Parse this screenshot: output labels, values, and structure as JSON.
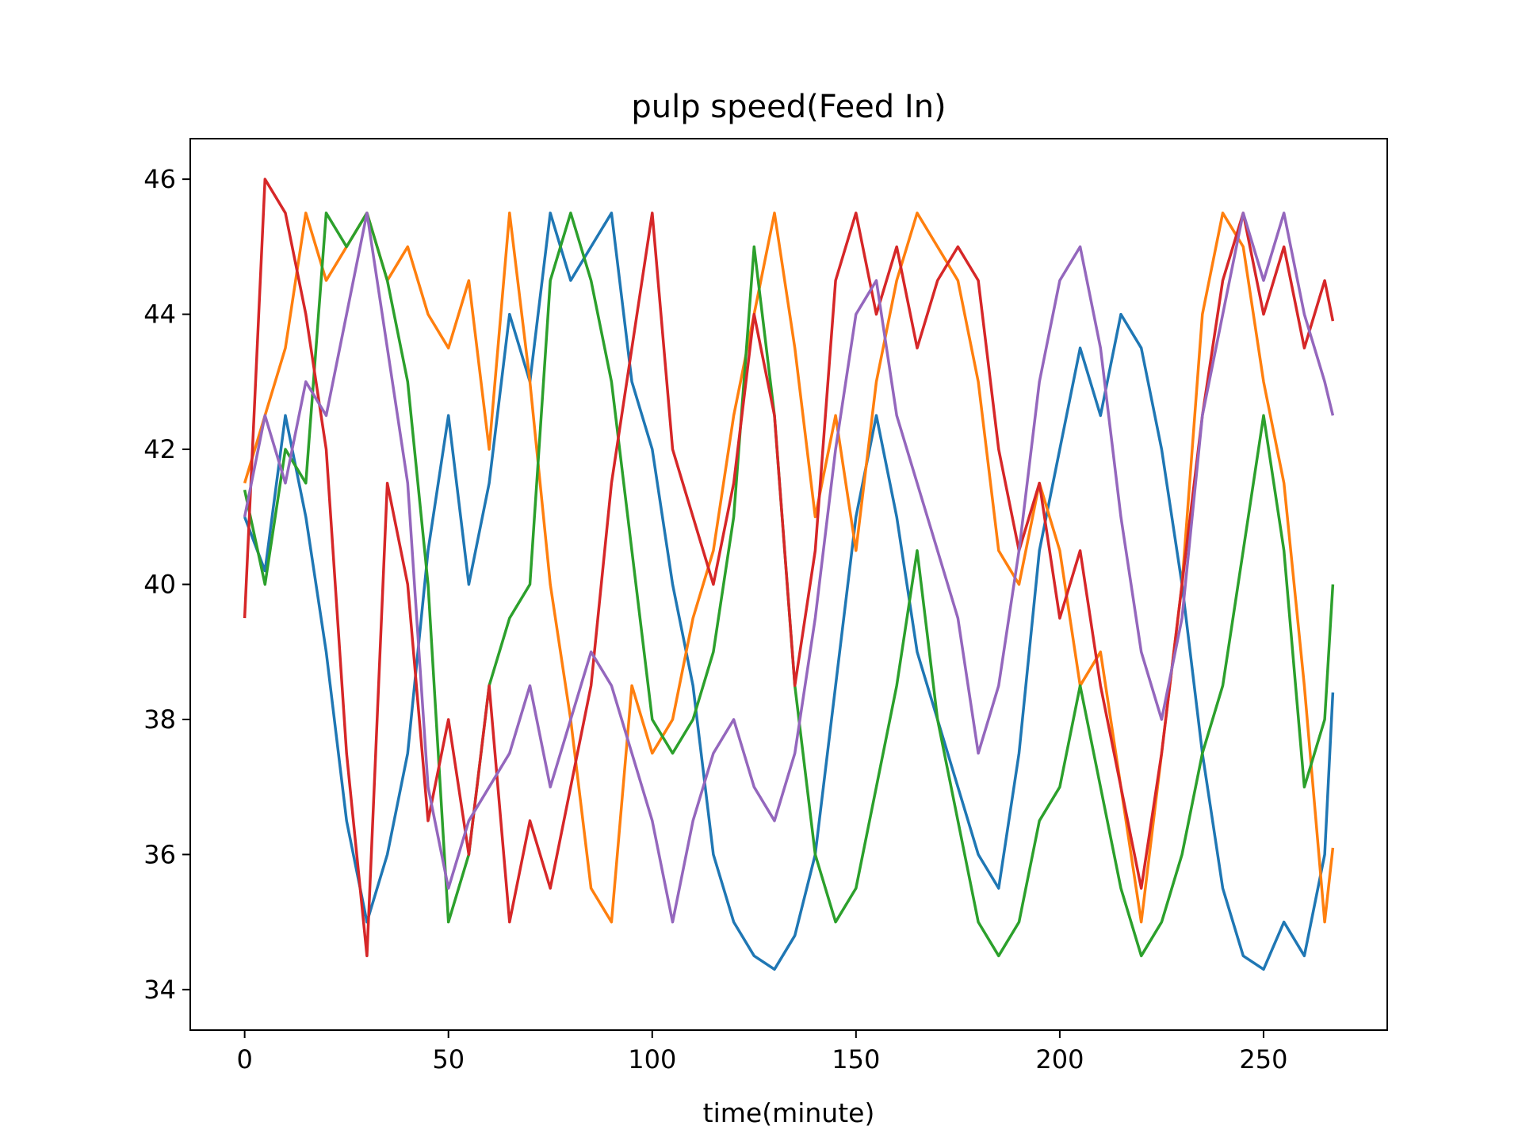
{
  "chart_data": {
    "type": "line",
    "title": "pulp speed(Feed In)",
    "xlabel": "time(minute)",
    "ylabel": "",
    "xlim": [
      -13.35,
      280.35
    ],
    "ylim": [
      33.4,
      46.6
    ],
    "xticks": [
      0,
      50,
      100,
      150,
      200,
      250
    ],
    "yticks": [
      34,
      36,
      38,
      40,
      42,
      44,
      46
    ],
    "xtick_labels": [
      "0",
      "50",
      "100",
      "150",
      "200",
      "250"
    ],
    "ytick_labels": [
      "34",
      "36",
      "38",
      "40",
      "42",
      "44",
      "46"
    ],
    "grid": false,
    "legend": "none",
    "series": [
      {
        "color": "#1f77b4",
        "x": [
          0,
          5,
          10,
          15,
          20,
          25,
          30,
          35,
          40,
          45,
          50,
          55,
          60,
          65,
          70,
          75,
          80,
          85,
          90,
          95,
          100,
          105,
          110,
          115,
          120,
          125,
          130,
          135,
          140,
          145,
          150,
          155,
          160,
          165,
          170,
          175,
          180,
          185,
          190,
          195,
          200,
          205,
          210,
          215,
          220,
          225,
          230,
          235,
          240,
          245,
          250,
          255,
          260,
          265,
          267
        ],
        "values": [
          41.0,
          40.2,
          42.5,
          41.0,
          39.0,
          36.5,
          35.0,
          36.0,
          37.5,
          40.5,
          42.5,
          40.0,
          41.5,
          44.0,
          43.0,
          45.5,
          44.5,
          45.0,
          45.5,
          43.0,
          42.0,
          40.0,
          38.5,
          36.0,
          35.0,
          34.5,
          34.3,
          34.8,
          36.0,
          38.5,
          41.0,
          42.5,
          41.0,
          39.0,
          38.0,
          37.0,
          36.0,
          35.5,
          37.5,
          40.5,
          42.0,
          43.5,
          42.5,
          44.0,
          43.5,
          42.0,
          40.0,
          37.5,
          35.5,
          34.5,
          34.3,
          35.0,
          34.5,
          36.0,
          38.4
        ]
      },
      {
        "color": "#ff7f0e",
        "x": [
          0,
          5,
          10,
          15,
          20,
          25,
          30,
          35,
          40,
          45,
          50,
          55,
          60,
          65,
          70,
          75,
          80,
          85,
          90,
          95,
          100,
          105,
          110,
          115,
          120,
          125,
          130,
          135,
          140,
          145,
          150,
          155,
          160,
          165,
          170,
          175,
          180,
          185,
          190,
          195,
          200,
          205,
          210,
          215,
          220,
          225,
          230,
          235,
          240,
          245,
          250,
          255,
          260,
          265,
          267
        ],
        "values": [
          41.5,
          42.5,
          43.5,
          45.5,
          44.5,
          45.0,
          45.5,
          44.5,
          45.0,
          44.0,
          43.5,
          44.5,
          42.0,
          45.5,
          43.0,
          40.0,
          38.0,
          35.5,
          35.0,
          38.5,
          37.5,
          38.0,
          39.5,
          40.5,
          42.5,
          44.0,
          45.5,
          43.5,
          41.0,
          42.5,
          40.5,
          43.0,
          44.5,
          45.5,
          45.0,
          44.5,
          43.0,
          40.5,
          40.0,
          41.5,
          40.5,
          38.5,
          39.0,
          37.0,
          35.0,
          37.5,
          40.0,
          44.0,
          45.5,
          45.0,
          43.0,
          41.5,
          38.5,
          35.0,
          36.1
        ]
      },
      {
        "color": "#2ca02c",
        "x": [
          0,
          5,
          10,
          15,
          20,
          25,
          30,
          35,
          40,
          45,
          50,
          55,
          60,
          65,
          70,
          75,
          80,
          85,
          90,
          95,
          100,
          105,
          110,
          115,
          120,
          125,
          130,
          135,
          140,
          145,
          150,
          155,
          160,
          165,
          170,
          175,
          180,
          185,
          190,
          195,
          200,
          205,
          210,
          215,
          220,
          225,
          230,
          235,
          240,
          245,
          250,
          255,
          260,
          265,
          267
        ],
        "values": [
          41.4,
          40.0,
          42.0,
          41.5,
          45.5,
          45.0,
          45.5,
          44.5,
          43.0,
          40.0,
          35.0,
          36.0,
          38.5,
          39.5,
          40.0,
          44.5,
          45.5,
          44.5,
          43.0,
          40.5,
          38.0,
          37.5,
          38.0,
          39.0,
          41.0,
          45.0,
          42.5,
          38.5,
          36.0,
          35.0,
          35.5,
          37.0,
          38.5,
          40.5,
          38.0,
          36.5,
          35.0,
          34.5,
          35.0,
          36.5,
          37.0,
          38.5,
          37.0,
          35.5,
          34.5,
          35.0,
          36.0,
          37.5,
          38.5,
          40.5,
          42.5,
          40.5,
          37.0,
          38.0,
          40.0
        ]
      },
      {
        "color": "#d62728",
        "x": [
          0,
          5,
          10,
          15,
          20,
          25,
          30,
          35,
          40,
          45,
          50,
          55,
          60,
          65,
          70,
          75,
          80,
          85,
          90,
          95,
          100,
          105,
          110,
          115,
          120,
          125,
          130,
          135,
          140,
          145,
          150,
          155,
          160,
          165,
          170,
          175,
          180,
          185,
          190,
          195,
          200,
          205,
          210,
          215,
          220,
          225,
          230,
          235,
          240,
          245,
          250,
          255,
          260,
          265,
          267
        ],
        "values": [
          39.5,
          46.0,
          45.5,
          44.0,
          42.0,
          37.5,
          34.5,
          41.5,
          40.0,
          36.5,
          38.0,
          36.0,
          38.5,
          35.0,
          36.5,
          35.5,
          37.0,
          38.5,
          41.5,
          43.5,
          45.5,
          42.0,
          41.0,
          40.0,
          41.5,
          44.0,
          42.5,
          38.5,
          40.5,
          44.5,
          45.5,
          44.0,
          45.0,
          43.5,
          44.5,
          45.0,
          44.5,
          42.0,
          40.5,
          41.5,
          39.5,
          40.5,
          38.5,
          37.0,
          35.5,
          37.5,
          40.0,
          42.5,
          44.5,
          45.5,
          44.0,
          45.0,
          43.5,
          44.5,
          43.9
        ]
      },
      {
        "color": "#9467bd",
        "x": [
          0,
          5,
          10,
          15,
          20,
          25,
          30,
          35,
          40,
          45,
          50,
          55,
          60,
          65,
          70,
          75,
          80,
          85,
          90,
          95,
          100,
          105,
          110,
          115,
          120,
          125,
          130,
          135,
          140,
          145,
          150,
          155,
          160,
          165,
          170,
          175,
          180,
          185,
          190,
          195,
          200,
          205,
          210,
          215,
          220,
          225,
          230,
          235,
          240,
          245,
          250,
          255,
          260,
          265,
          267
        ],
        "values": [
          41.0,
          42.5,
          41.5,
          43.0,
          42.5,
          44.0,
          45.5,
          43.5,
          41.5,
          37.0,
          35.5,
          36.5,
          37.0,
          37.5,
          38.5,
          37.0,
          38.0,
          39.0,
          38.5,
          37.5,
          36.5,
          35.0,
          36.5,
          37.5,
          38.0,
          37.0,
          36.5,
          37.5,
          39.5,
          42.0,
          44.0,
          44.5,
          42.5,
          41.5,
          40.5,
          39.5,
          37.5,
          38.5,
          40.5,
          43.0,
          44.5,
          45.0,
          43.5,
          41.0,
          39.0,
          38.0,
          39.5,
          42.5,
          44.0,
          45.5,
          44.5,
          45.5,
          44.0,
          43.0,
          42.5
        ]
      }
    ]
  }
}
